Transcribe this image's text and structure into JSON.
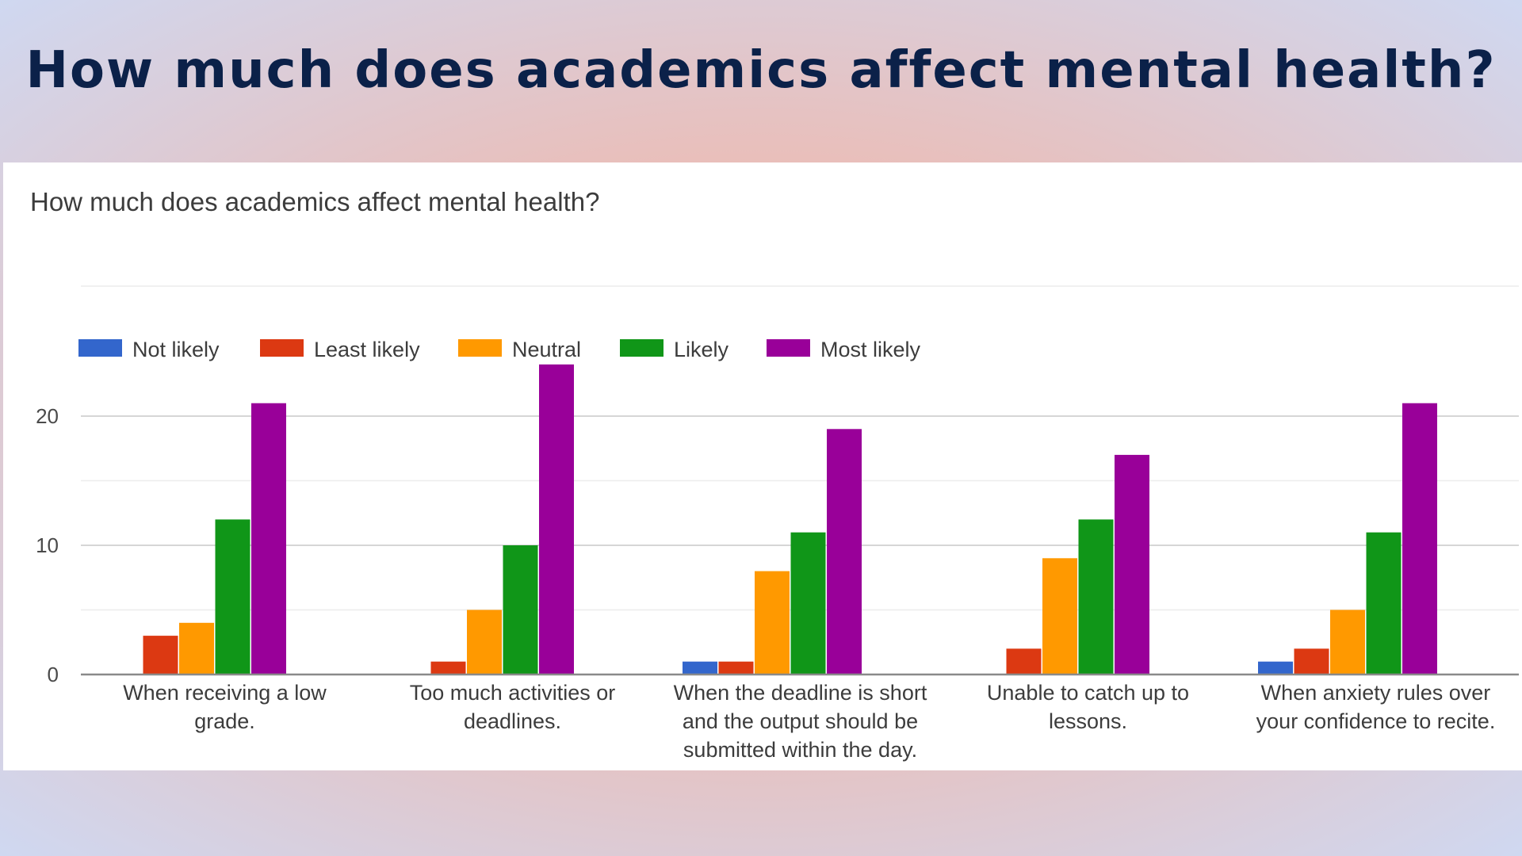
{
  "page": {
    "heading": "How much does academics affect mental health?"
  },
  "chart_data": {
    "type": "bar",
    "title": "How much does academics affect mental health?",
    "xlabel": "",
    "ylabel": "",
    "ylim": [
      0,
      24
    ],
    "yticks": [
      0,
      10,
      20
    ],
    "grid": true,
    "legend_position": "top-left",
    "categories": [
      [
        "When receiving a low",
        "grade."
      ],
      [
        "Too much activities or",
        "deadlines."
      ],
      [
        "When the deadline is short",
        "and the output should be",
        "submitted within the day."
      ],
      [
        "Unable to catch up to",
        "lessons."
      ],
      [
        "When anxiety rules over",
        "your confidence to recite."
      ]
    ],
    "series": [
      {
        "name": "Not likely",
        "color": "#3366cc",
        "values": [
          0,
          0,
          1,
          0,
          1
        ]
      },
      {
        "name": "Least likely",
        "color": "#dc3912",
        "values": [
          3,
          1,
          1,
          2,
          2
        ]
      },
      {
        "name": "Neutral",
        "color": "#ff9900",
        "values": [
          4,
          5,
          8,
          9,
          5
        ]
      },
      {
        "name": "Likely",
        "color": "#109618",
        "values": [
          12,
          10,
          11,
          12,
          11
        ]
      },
      {
        "name": "Most likely",
        "color": "#990099",
        "values": [
          21,
          24,
          19,
          17,
          21
        ]
      }
    ]
  }
}
